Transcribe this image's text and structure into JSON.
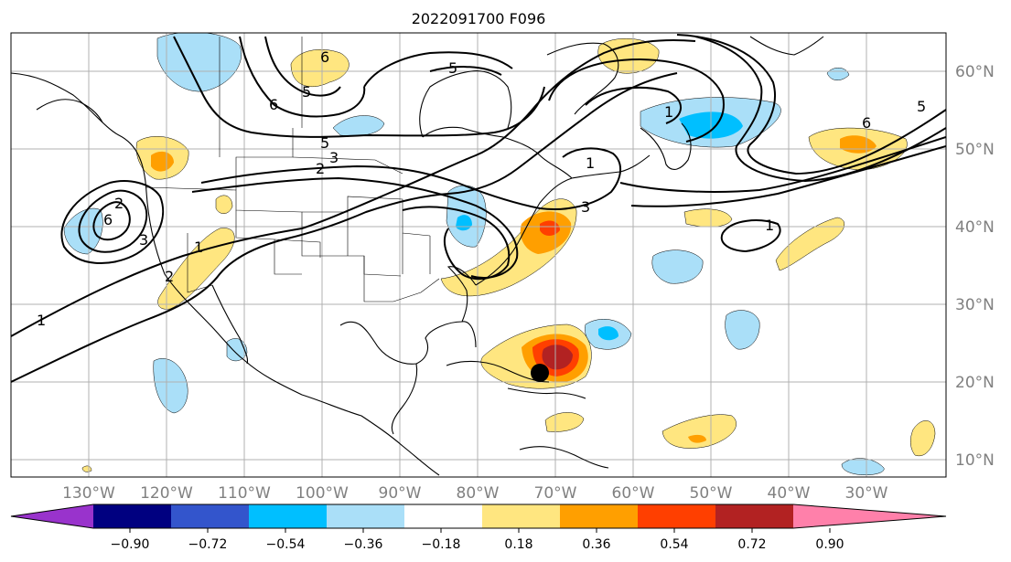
{
  "title": "2022091700 F096",
  "lon_labels": [
    "130°W",
    "120°W",
    "110°W",
    "100°W",
    "90°W",
    "80°W",
    "70°W",
    "60°W",
    "50°W",
    "40°W",
    "30°W"
  ],
  "lat_labels": [
    "60°N",
    "50°N",
    "40°N",
    "30°N",
    "20°N",
    "10°N"
  ],
  "colorbar": {
    "ticks": [
      "−0.90",
      "−0.72",
      "−0.54",
      "−0.36",
      "−0.18",
      "0.18",
      "0.36",
      "0.54",
      "0.72",
      "0.90"
    ],
    "colors": [
      "#9933cc",
      "#000080",
      "#3355cc",
      "#00bfff",
      "#aadff8",
      "#ffffff",
      "#ffe680",
      "#ff9f00",
      "#ff3f00",
      "#b22222",
      "#ff80aa"
    ]
  },
  "contour_labels": [
    "1",
    "2",
    "3",
    "5",
    "6",
    "6",
    "5",
    "3",
    "2",
    "1",
    "6",
    "5",
    "3",
    "1",
    "2",
    "1",
    "1",
    "5",
    "6"
  ],
  "storm_marker": "storm-center",
  "colors": {
    "grid": "#b0b0b0",
    "tick_label": "#808080"
  }
}
